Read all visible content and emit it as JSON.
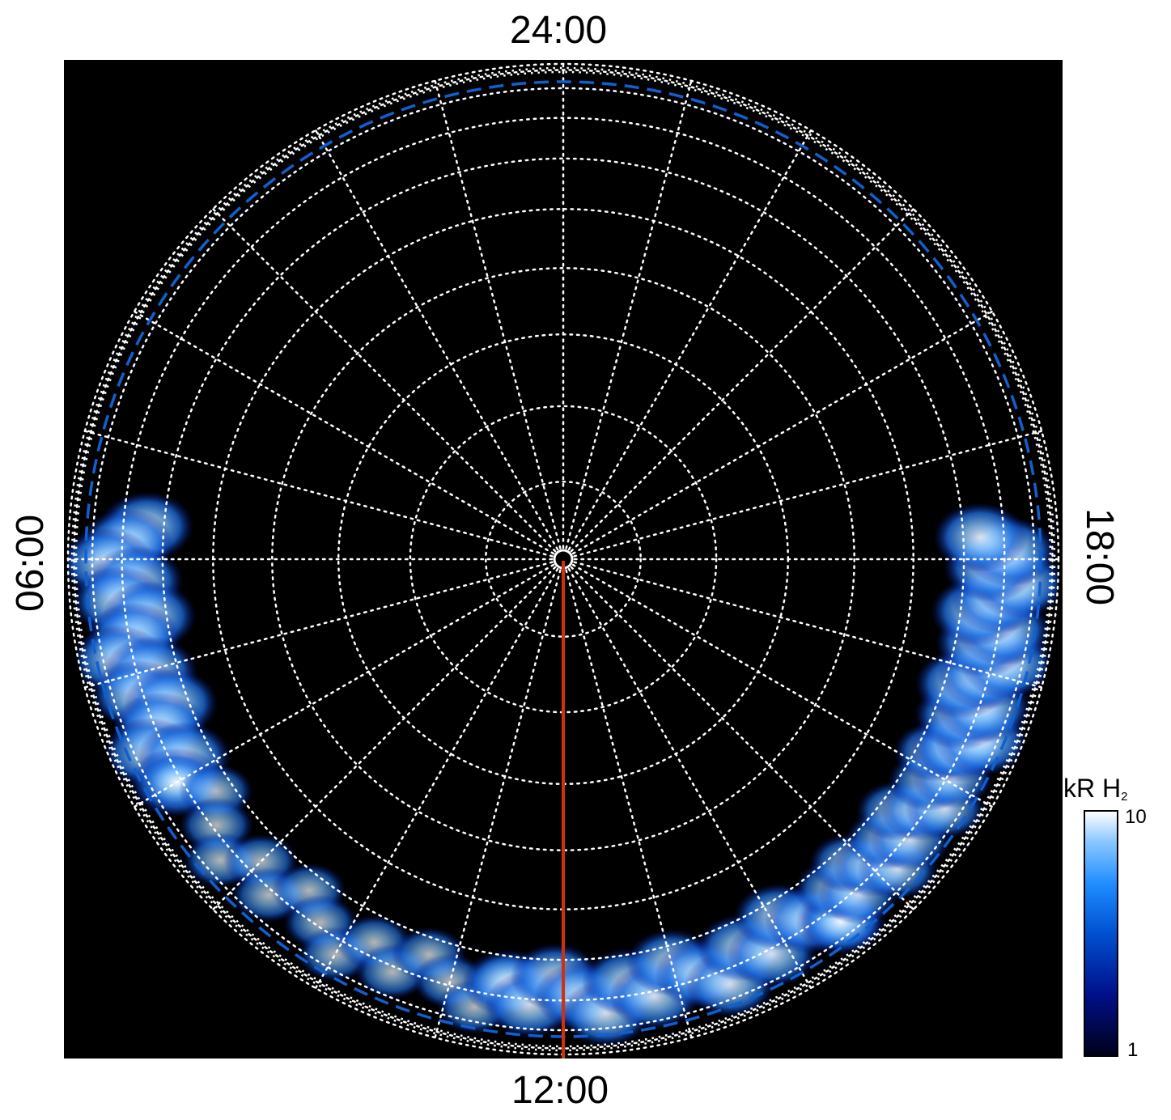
{
  "chart_data": {
    "type": "heatmap",
    "projection": "polar (local time vs. colatitude)",
    "local_time_labels": {
      "top": "24:00",
      "bottom": "12:00",
      "left": "06:00",
      "right": "18:00"
    },
    "local_time_meridians_hours": [
      0,
      1,
      2,
      3,
      4,
      5,
      6,
      7,
      8,
      9,
      10,
      11,
      12,
      13,
      14,
      15,
      16,
      17,
      18,
      19,
      20,
      21,
      22,
      23
    ],
    "colatitude_grid_circles": 10,
    "reference_oval": "blue dashed",
    "colorbar": {
      "title": "kR H",
      "title_subscript": "2",
      "min_label": "1",
      "max_label": "10",
      "scale": "log",
      "range": [
        1,
        10
      ],
      "colors": [
        "#00001a",
        "#00108a",
        "#0050d0",
        "#1e8cff",
        "#8cc8ff",
        "#ffffff"
      ]
    },
    "emission_regions": [
      {
        "local_time_start": 5.7,
        "local_time_end": 8.0,
        "intensity": 8
      },
      {
        "local_time_start": 8.0,
        "local_time_end": 11.5,
        "intensity": 4
      },
      {
        "local_time_start": 11.5,
        "local_time_end": 14.5,
        "intensity": 7
      },
      {
        "local_time_start": 14.5,
        "local_time_end": 16.3,
        "intensity": 5
      },
      {
        "local_time_start": 16.3,
        "local_time_end": 18.2,
        "intensity": 8
      }
    ],
    "marker_line": {
      "color": "#d03010",
      "local_time": 12
    }
  }
}
